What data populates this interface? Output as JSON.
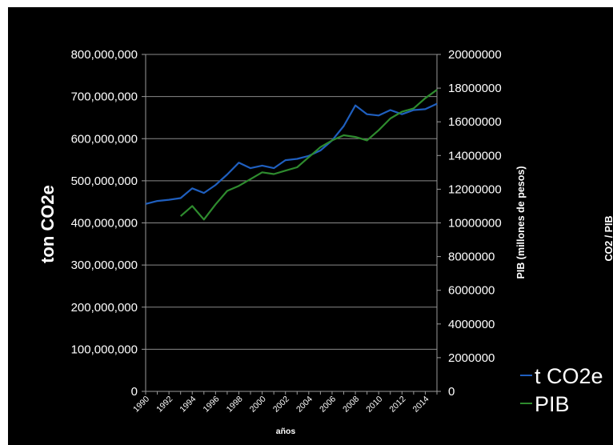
{
  "chart_data": {
    "type": "line",
    "x": [
      1990,
      1991,
      1992,
      1993,
      1994,
      1995,
      1996,
      1997,
      1998,
      1999,
      2000,
      2001,
      2002,
      2003,
      2004,
      2005,
      2006,
      2007,
      2008,
      2009,
      2010,
      2011,
      2012,
      2013,
      2014,
      2015
    ],
    "xticks": [
      "1990",
      "1992",
      "1994",
      "1996",
      "1998",
      "2000",
      "2002",
      "2004",
      "2006",
      "2008",
      "2010",
      "2012",
      "2014"
    ],
    "xlabel": "años",
    "ylabel_left": "ton CO2e",
    "ylabel_right": "PIB (millones de pesos)",
    "ylabel_clipped": "CO2 / PIB",
    "ylim_left": [
      0,
      800000000
    ],
    "ylim_right": [
      0,
      20000000
    ],
    "yticks_left": [
      "0",
      "100,000,000",
      "200,000,000",
      "300,000,000",
      "400,000,000",
      "500,000,000",
      "600,000,000",
      "700,000,000",
      "800,000,000"
    ],
    "yticks_right": [
      "0",
      "2000000",
      "4000000",
      "6000000",
      "8000000",
      "10000000",
      "12000000",
      "14000000",
      "16000000",
      "18000000",
      "20000000"
    ],
    "grid": true,
    "legend": "bottom-right",
    "series": [
      {
        "name": "t CO2e",
        "axis": "left",
        "color": "#1f5fbf",
        "values": [
          445000000,
          452000000,
          455000000,
          459000000,
          482000000,
          471000000,
          490000000,
          515000000,
          543000000,
          530000000,
          536000000,
          530000000,
          549000000,
          552000000,
          559000000,
          572000000,
          596000000,
          630000000,
          679000000,
          658000000,
          655000000,
          668000000,
          658000000,
          668000000,
          670000000,
          683000000
        ]
      },
      {
        "name": "PIB",
        "axis": "right",
        "color": "#2e8b2e",
        "values": [
          null,
          null,
          null,
          10400000,
          11000000,
          10200000,
          11100000,
          11900000,
          12200000,
          12600000,
          13000000,
          12900000,
          13100000,
          13300000,
          13900000,
          14500000,
          14900000,
          15200000,
          15100000,
          14900000,
          15500000,
          16200000,
          16600000,
          16800000,
          17400000,
          17900000
        ]
      }
    ]
  }
}
